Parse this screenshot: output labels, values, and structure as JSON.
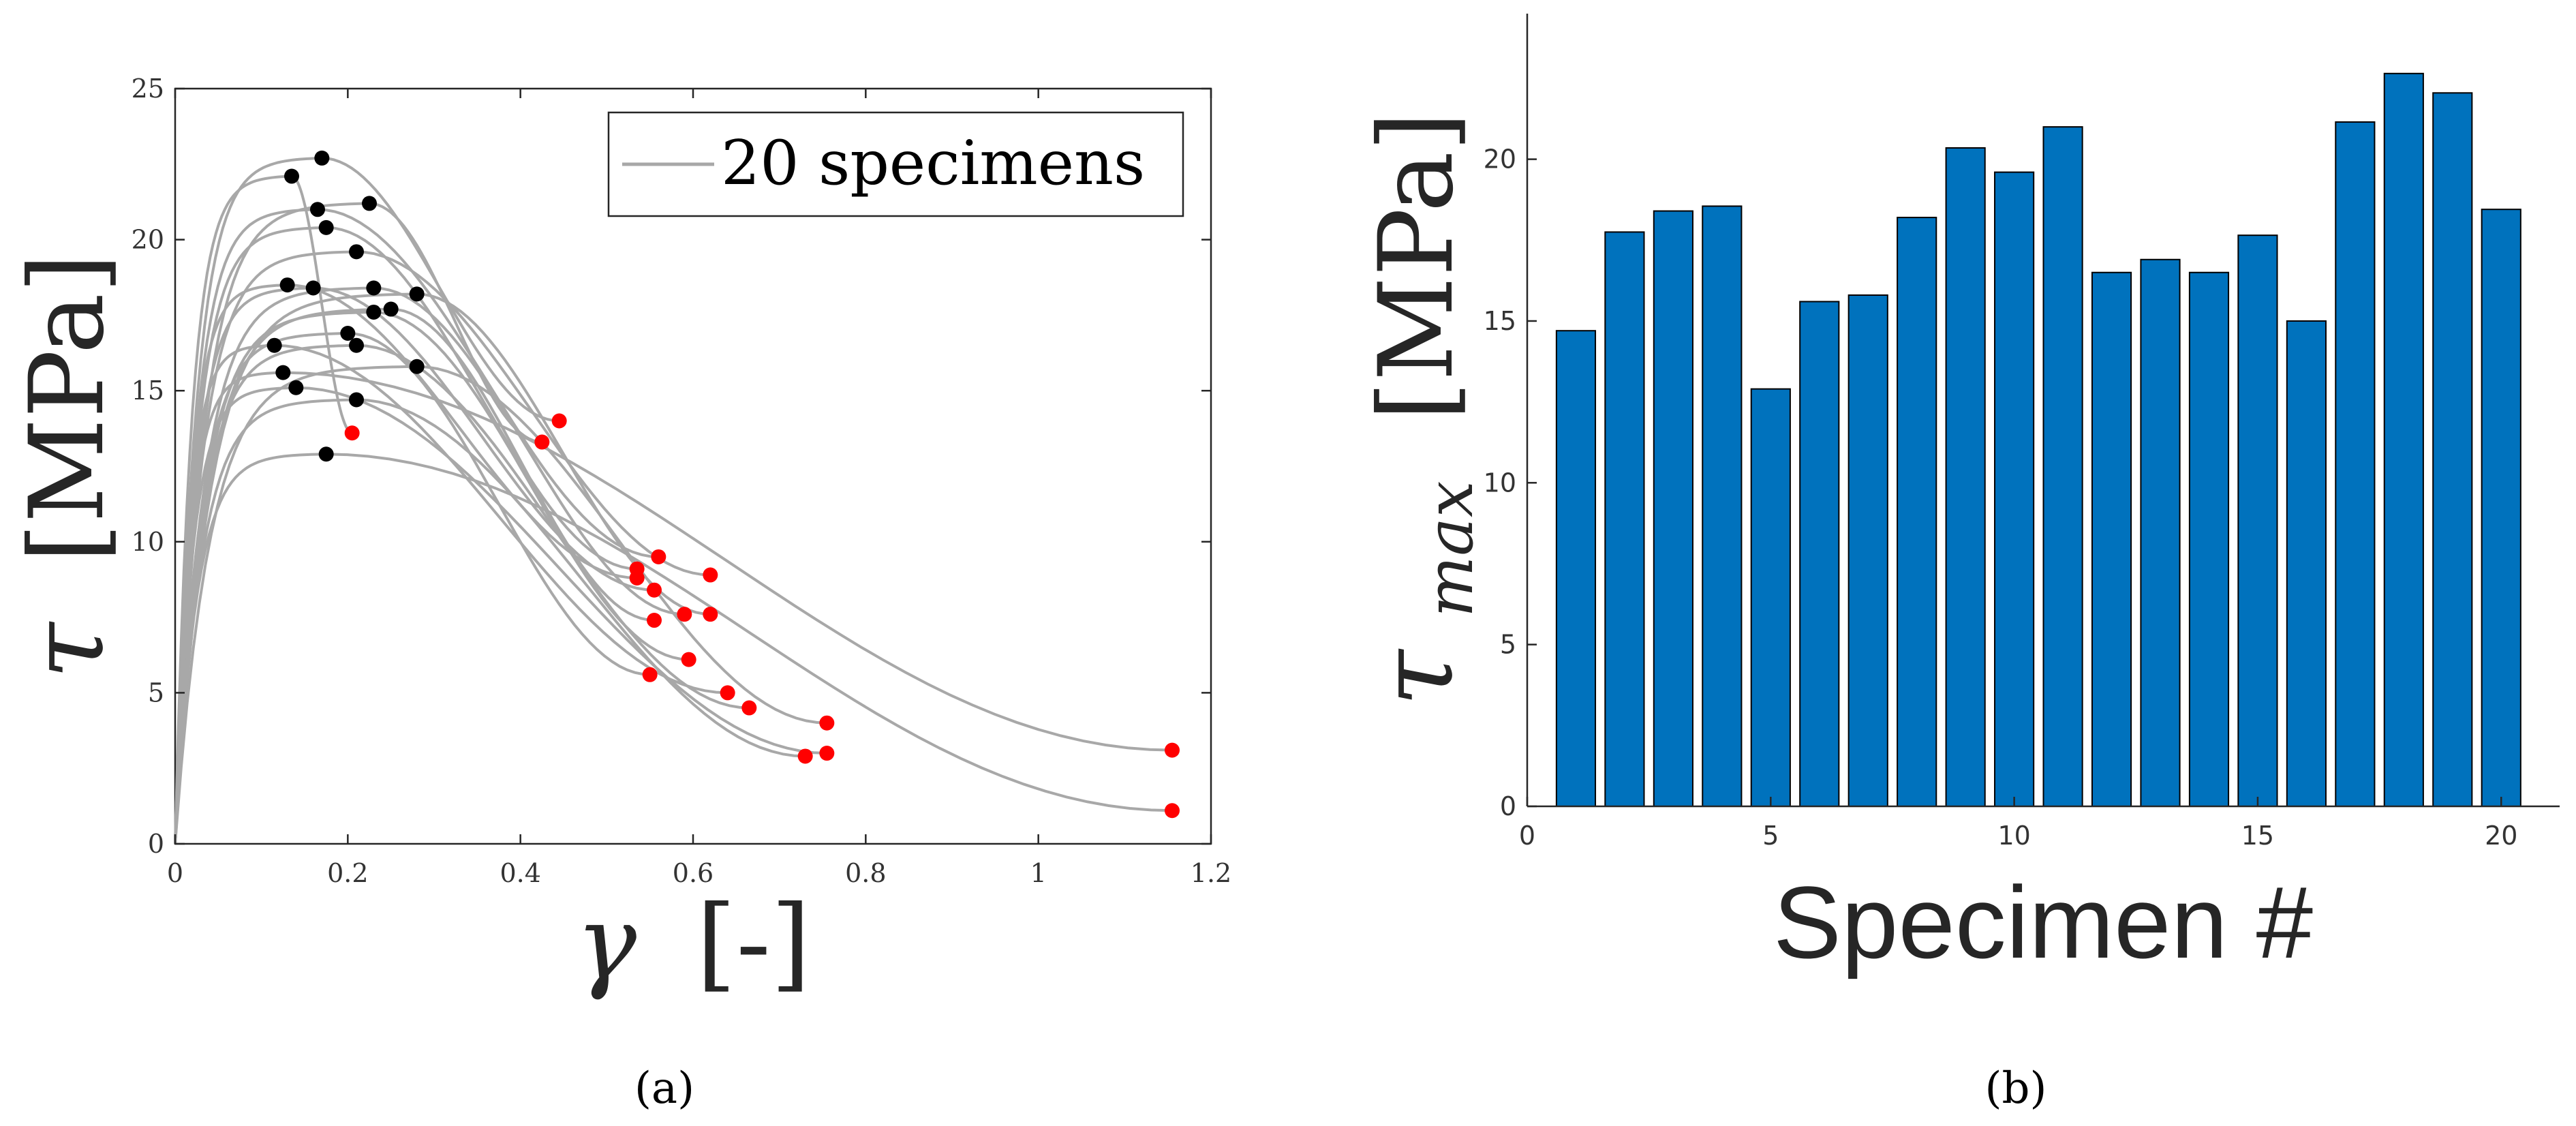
{
  "colors": {
    "curve": "#a8a8a8",
    "peak_marker": "#000000",
    "failure_marker": "#ff0000",
    "bar_fill": "#0072bd",
    "axis": "#262626"
  },
  "captions": {
    "a": "(a)",
    "b": "(b)"
  },
  "chart_data": [
    {
      "type": "line",
      "panel": "a",
      "ylabel_symbol": "τ",
      "ylabel_unit": "[MPa]",
      "xlabel_symbol": "γ",
      "xlabel_unit": "[-]",
      "xlim": [
        0,
        1.2
      ],
      "ylim": [
        0,
        25
      ],
      "xticks": [
        0,
        0.2,
        0.4,
        0.6,
        0.8,
        1,
        1.2
      ],
      "xtick_labels": [
        "0",
        "0.2",
        "0.4",
        "0.6",
        "0.8",
        "1",
        "1.2"
      ],
      "yticks": [
        0,
        5,
        10,
        15,
        20,
        25
      ],
      "ytick_labels": [
        "0",
        "5",
        "10",
        "15",
        "20",
        "25"
      ],
      "legend": {
        "label": "20 specimens",
        "location": "top-right"
      },
      "peak_points": [
        [
          0.135,
          22.1
        ],
        [
          0.17,
          22.7
        ],
        [
          0.165,
          21.0
        ],
        [
          0.225,
          21.2
        ],
        [
          0.175,
          20.4
        ],
        [
          0.21,
          19.6
        ],
        [
          0.13,
          18.5
        ],
        [
          0.16,
          18.4
        ],
        [
          0.23,
          18.4
        ],
        [
          0.28,
          18.2
        ],
        [
          0.25,
          17.7
        ],
        [
          0.23,
          17.6
        ],
        [
          0.2,
          16.9
        ],
        [
          0.115,
          16.5
        ],
        [
          0.21,
          16.5
        ],
        [
          0.28,
          15.8
        ],
        [
          0.125,
          15.6
        ],
        [
          0.14,
          15.1
        ],
        [
          0.21,
          14.7
        ],
        [
          0.175,
          12.9
        ]
      ],
      "failure_points": [
        [
          0.205,
          13.6
        ],
        [
          0.445,
          14.0
        ],
        [
          0.425,
          13.3
        ],
        [
          0.56,
          9.5
        ],
        [
          0.535,
          9.1
        ],
        [
          0.535,
          8.8
        ],
        [
          0.62,
          8.9
        ],
        [
          0.555,
          8.4
        ],
        [
          0.59,
          7.6
        ],
        [
          0.62,
          7.6
        ],
        [
          0.555,
          7.4
        ],
        [
          0.595,
          6.1
        ],
        [
          0.55,
          5.6
        ],
        [
          0.64,
          5.0
        ],
        [
          0.665,
          4.5
        ],
        [
          0.755,
          4.0
        ],
        [
          0.73,
          2.9
        ],
        [
          0.755,
          3.0
        ],
        [
          1.155,
          3.1
        ],
        [
          1.155,
          1.1
        ]
      ]
    },
    {
      "type": "bar",
      "panel": "b",
      "xlabel": "Specimen #",
      "ylabel_symbol": "τ",
      "ylabel_subscript": "max",
      "ylabel_unit": "[MPa]",
      "categories": [
        1,
        2,
        3,
        4,
        5,
        6,
        7,
        8,
        9,
        10,
        11,
        12,
        13,
        14,
        15,
        16,
        17,
        18,
        19,
        20
      ],
      "values": [
        14.7,
        17.75,
        18.4,
        18.55,
        12.9,
        15.6,
        15.8,
        18.2,
        20.35,
        19.6,
        21.0,
        16.5,
        16.9,
        16.5,
        17.65,
        15.0,
        21.15,
        22.65,
        22.05,
        18.45
      ],
      "xlim": [
        0,
        21.2
      ],
      "ylim": [
        0,
        24.5
      ],
      "xticks": [
        0,
        5,
        10,
        15,
        20
      ],
      "xtick_labels": [
        "0",
        "5",
        "10",
        "15",
        "20"
      ],
      "yticks": [
        0,
        5,
        10,
        15,
        20
      ],
      "ytick_labels": [
        "0",
        "5",
        "10",
        "15",
        "20"
      ]
    }
  ]
}
